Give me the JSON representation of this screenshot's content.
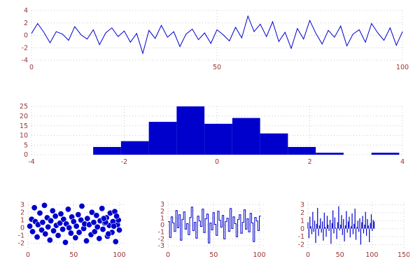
{
  "figure": {
    "background": "#ffffff",
    "data_color": "#0000cc",
    "tick_label_color": "#993333",
    "grid_color": "#cccccc"
  },
  "chart_data": [
    {
      "type": "line",
      "title": "",
      "xlabel": "",
      "ylabel": "",
      "xlim": [
        0,
        100
      ],
      "ylim": [
        -4,
        4
      ],
      "xticks": [
        0,
        50,
        100
      ],
      "yticks": [
        -4,
        -2,
        0,
        2,
        4
      ],
      "grid": true,
      "legend": "none",
      "x_start": 0,
      "x_step": 1.6667,
      "values": [
        0.3,
        1.9,
        0.5,
        -1.2,
        0.6,
        0.2,
        -0.8,
        1.4,
        0.1,
        -0.6,
        0.9,
        -1.5,
        0.4,
        1.2,
        -0.2,
        0.7,
        -1.1,
        0.3,
        -2.9,
        0.8,
        -0.5,
        1.6,
        -0.3,
        0.6,
        -1.8,
        0.2,
        1.0,
        -0.7,
        0.4,
        -1.3,
        0.9,
        0.1,
        -0.9,
        1.3,
        -0.4,
        3.1,
        0.6,
        1.8,
        -0.2,
        2.2,
        -1.0,
        0.5,
        -2.1,
        1.1,
        -0.6,
        2.4,
        0.3,
        -1.4,
        0.8,
        -0.3,
        1.5,
        -1.7,
        0.2,
        0.9,
        -1.1,
        1.9,
        0.4,
        -0.8,
        1.2,
        -1.6,
        0.6
      ]
    },
    {
      "type": "histogram",
      "title": "",
      "xlabel": "",
      "ylabel": "",
      "xlim": [
        -4,
        4
      ],
      "ylim": [
        0,
        25
      ],
      "xticks": [
        -4,
        -2,
        0,
        2,
        4
      ],
      "yticks": [
        0,
        5,
        10,
        15,
        20,
        25
      ],
      "grid": true,
      "legend": "none",
      "bin_start": -2.67,
      "bin_width": 0.6,
      "counts": [
        4,
        7,
        17,
        25,
        16,
        19,
        11,
        4,
        1,
        0,
        1
      ]
    },
    {
      "type": "scatter",
      "title": "",
      "xlabel": "",
      "ylabel": "",
      "xlim": [
        0,
        105
      ],
      "ylim": [
        -2.6,
        3.3
      ],
      "xticks": [
        0,
        50,
        100
      ],
      "yticks": [
        -2,
        -1,
        0,
        1,
        2,
        3
      ],
      "grid": true,
      "legend": "none",
      "x": [
        2,
        4,
        5,
        7,
        8,
        10,
        11,
        13,
        15,
        16,
        18,
        19,
        21,
        22,
        24,
        25,
        27,
        28,
        30,
        31,
        33,
        35,
        36,
        38,
        39,
        41,
        42,
        44,
        45,
        47,
        48,
        50,
        52,
        53,
        55,
        56,
        58,
        59,
        61,
        62,
        64,
        65,
        67,
        69,
        70,
        72,
        73,
        75,
        76,
        78,
        79,
        81,
        82,
        84,
        86,
        87,
        89,
        90,
        92,
        93,
        95,
        96,
        98,
        99,
        100,
        97,
        94,
        88,
        85,
        83
      ],
      "y": [
        0.2,
        1.1,
        -0.5,
        2.6,
        0.8,
        -1.2,
        0.4,
        1.9,
        -0.3,
        0.7,
        2.9,
        -0.8,
        1.3,
        0.1,
        -1.6,
        0.9,
        2.2,
        -0.4,
        1.5,
        0.3,
        -1.0,
        0.6,
        1.8,
        -0.2,
        1.1,
        -1.9,
        0.5,
        2.4,
        0.0,
        -0.7,
        1.4,
        0.8,
        -1.3,
        0.2,
        1.7,
        -0.6,
        1.0,
        2.8,
        -0.1,
        0.5,
        -1.7,
        1.2,
        0.4,
        -0.9,
        2.0,
        0.7,
        -0.5,
        1.6,
        0.1,
        -1.4,
        0.9,
        2.5,
        -0.2,
        0.6,
        1.3,
        -1.1,
        0.3,
        1.9,
        -0.6,
        0.8,
        2.1,
        -1.8,
        0.4,
        1.0,
        -0.3,
        1.5,
        0.2,
        -0.8,
        0.7,
        1.2
      ]
    },
    {
      "type": "step",
      "title": "",
      "xlabel": "",
      "ylabel": "",
      "xlim": [
        0,
        105
      ],
      "ylim": [
        -3.3,
        3.3
      ],
      "xticks": [
        0,
        50,
        100
      ],
      "yticks": [
        -3,
        -2,
        -1,
        0,
        1,
        2,
        3
      ],
      "grid": true,
      "legend": "none",
      "x_start": 0,
      "x_step": 1.695,
      "values": [
        0.5,
        -1.8,
        1.2,
        0.3,
        -0.9,
        2.1,
        -0.4,
        1.5,
        -2.2,
        0.8,
        1.9,
        -0.6,
        0.2,
        -1.4,
        1.1,
        2.6,
        -0.8,
        0.4,
        -1.9,
        1.3,
        0.6,
        -0.2,
        2.3,
        -1.1,
        0.9,
        1.6,
        -2.6,
        0.3,
        -0.7,
        1.8,
        0.1,
        -1.5,
        2.0,
        0.7,
        -0.3,
        1.4,
        -2.0,
        0.5,
        1.0,
        -0.9,
        2.4,
        -0.5,
        1.2,
        0.2,
        -1.7,
        0.8,
        1.5,
        -1.2,
        0.4,
        2.2,
        -0.6,
        0.9,
        -1.0,
        1.7,
        0.3,
        -2.4,
        1.1,
        0.6,
        -0.8,
        1.3
      ]
    },
    {
      "type": "stem",
      "title": "",
      "xlabel": "",
      "ylabel": "",
      "xlim": [
        0,
        150
      ],
      "ylim": [
        -2.4,
        3.3
      ],
      "xticks": [
        0,
        50,
        100,
        150
      ],
      "yticks": [
        -2,
        -1,
        0,
        1,
        2,
        3
      ],
      "grid": true,
      "legend": "none",
      "x_start": 0,
      "x_step": 1.5,
      "values": [
        0.8,
        -1.2,
        1.5,
        0.3,
        -0.7,
        2.1,
        -0.4,
        1.0,
        -1.8,
        0.6,
        2.6,
        -0.9,
        0.4,
        1.3,
        -0.5,
        0.9,
        -1.5,
        2.0,
        0.2,
        -1.0,
        1.6,
        0.5,
        -0.3,
        1.1,
        -1.9,
        0.7,
        2.3,
        -0.6,
        1.4,
        0.1,
        -1.3,
        0.8,
        2.8,
        -0.2,
        0.5,
        1.7,
        -0.8,
        1.2,
        -1.6,
        0.4,
        2.2,
        -0.5,
        0.9,
        1.5,
        -1.1,
        0.3,
        1.9,
        -0.7,
        0.6,
        2.5,
        -1.4,
        0.2,
        1.0,
        -0.4,
        1.3,
        -2.0,
        0.8,
        1.6,
        -0.6,
        0.5,
        2.1,
        -0.9,
        1.2,
        0.4,
        -1.7,
        0.7,
        1.8,
        -0.3,
        1.1,
        0.9
      ]
    }
  ]
}
